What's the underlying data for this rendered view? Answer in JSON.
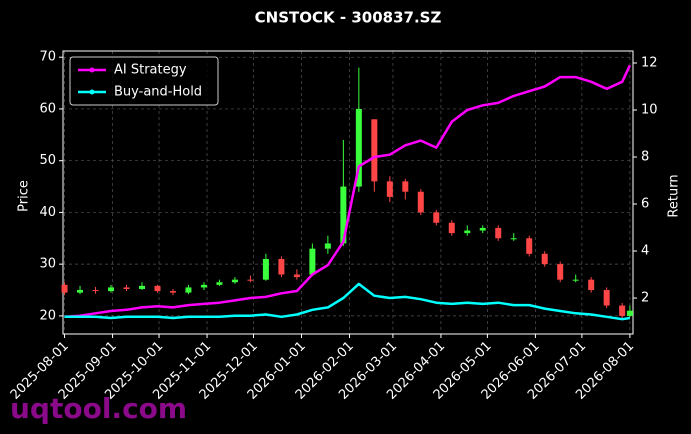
{
  "chart_data": {
    "type": "candlestick",
    "title": "CNSTOCK - 300837.SZ",
    "ylabel": "Price",
    "y2label": "Return",
    "watermark": "uqtool.com",
    "x": [
      "2025-08-01",
      "2025-08-11",
      "2025-08-21",
      "2025-08-31",
      "2025-09-10",
      "2025-09-20",
      "2025-09-30",
      "2025-10-10",
      "2025-10-20",
      "2025-10-30",
      "2025-11-09",
      "2025-11-19",
      "2025-11-29",
      "2025-12-09",
      "2025-12-19",
      "2025-12-29",
      "2026-01-08",
      "2026-01-18",
      "2026-01-28",
      "2026-02-07",
      "2026-02-17",
      "2026-02-27",
      "2026-03-09",
      "2026-03-19",
      "2026-03-29",
      "2026-04-08",
      "2026-04-18",
      "2026-04-28",
      "2026-05-08",
      "2026-05-18",
      "2026-05-28",
      "2026-06-07",
      "2026-06-17",
      "2026-06-27",
      "2026-07-07",
      "2026-07-17",
      "2026-07-27",
      "2026-08-01"
    ],
    "open": [
      26,
      24.5,
      25,
      24.8,
      25.5,
      25.2,
      25.8,
      24.8,
      24.5,
      25.5,
      26,
      26.5,
      27,
      27,
      31,
      28,
      28,
      33,
      34,
      45,
      58,
      46,
      46,
      44,
      40,
      38,
      36,
      36.5,
      37,
      35,
      35,
      32,
      30,
      27,
      27,
      25,
      22,
      20
    ],
    "high": [
      26.5,
      25.8,
      25.6,
      26,
      26,
      26.5,
      26,
      25.2,
      26,
      26.5,
      27,
      27.5,
      27.8,
      32,
      31.5,
      29,
      34,
      35.5,
      54,
      68,
      58,
      47,
      46.5,
      44.5,
      40.5,
      38.5,
      37.5,
      37.5,
      37.5,
      36,
      35.5,
      32.5,
      30.5,
      28,
      27.5,
      25.5,
      22.5,
      22
    ],
    "low": [
      24,
      24.2,
      24.3,
      24.5,
      24.8,
      25,
      24.5,
      24,
      24.2,
      25,
      25.8,
      26.2,
      26.5,
      26.8,
      27.5,
      27,
      27.8,
      32,
      33.5,
      44,
      44,
      42,
      42.5,
      39.5,
      37.5,
      35.5,
      35.5,
      36,
      34.5,
      34.5,
      31.5,
      29.5,
      26.5,
      26.5,
      24.5,
      21.5,
      19.5,
      19.8
    ],
    "close": [
      24.5,
      25,
      24.8,
      25.5,
      25.2,
      25.8,
      24.8,
      24.5,
      25.5,
      26,
      26.5,
      27,
      26.8,
      31,
      28,
      27.5,
      33,
      34,
      45,
      60,
      46,
      43,
      44,
      40,
      38,
      36,
      36.5,
      37,
      35,
      35,
      32,
      30,
      27,
      27,
      25,
      22,
      20,
      21
    ],
    "up_color": "#39ff3c",
    "down_color": "#ff4646",
    "series": [
      {
        "name": "AI Strategy",
        "color": "#ff00ff",
        "axis": "y2",
        "values": [
          1.2,
          1.25,
          1.35,
          1.45,
          1.5,
          1.6,
          1.65,
          1.6,
          1.7,
          1.75,
          1.8,
          1.9,
          2.0,
          2.05,
          2.2,
          2.3,
          3.0,
          3.4,
          4.4,
          7.6,
          8.0,
          8.1,
          8.5,
          8.7,
          8.4,
          9.5,
          10.0,
          10.2,
          10.3,
          10.6,
          10.8,
          11.0,
          11.4,
          11.4,
          11.2,
          10.9,
          11.2,
          11.9
        ]
      },
      {
        "name": "Buy-and-Hold",
        "color": "#00ffff",
        "axis": "y2",
        "values": [
          1.2,
          1.2,
          1.2,
          1.15,
          1.2,
          1.2,
          1.2,
          1.15,
          1.2,
          1.2,
          1.2,
          1.25,
          1.25,
          1.3,
          1.2,
          1.3,
          1.5,
          1.6,
          2.0,
          2.6,
          2.1,
          2.0,
          2.05,
          1.95,
          1.8,
          1.75,
          1.8,
          1.75,
          1.8,
          1.7,
          1.7,
          1.55,
          1.45,
          1.35,
          1.3,
          1.2,
          1.1,
          1.15
        ]
      }
    ],
    "xlim": [
      "2025-07-31",
      "2026-08-03"
    ],
    "xticks": [
      "2025-08-01",
      "2025-09-01",
      "2025-10-01",
      "2025-11-01",
      "2025-12-01",
      "2026-01-01",
      "2026-02-01",
      "2026-03-01",
      "2026-04-01",
      "2026-05-01",
      "2026-06-01",
      "2026-07-01",
      "2026-08-01"
    ],
    "ylim": [
      16.5,
      71.2
    ],
    "yticks": [
      20,
      30,
      40,
      50,
      60,
      70
    ],
    "y2lim": [
      0.47,
      12.51
    ],
    "y2ticks": [
      2,
      4,
      6,
      8,
      10,
      12
    ],
    "grid": true,
    "legend": "upper left"
  }
}
